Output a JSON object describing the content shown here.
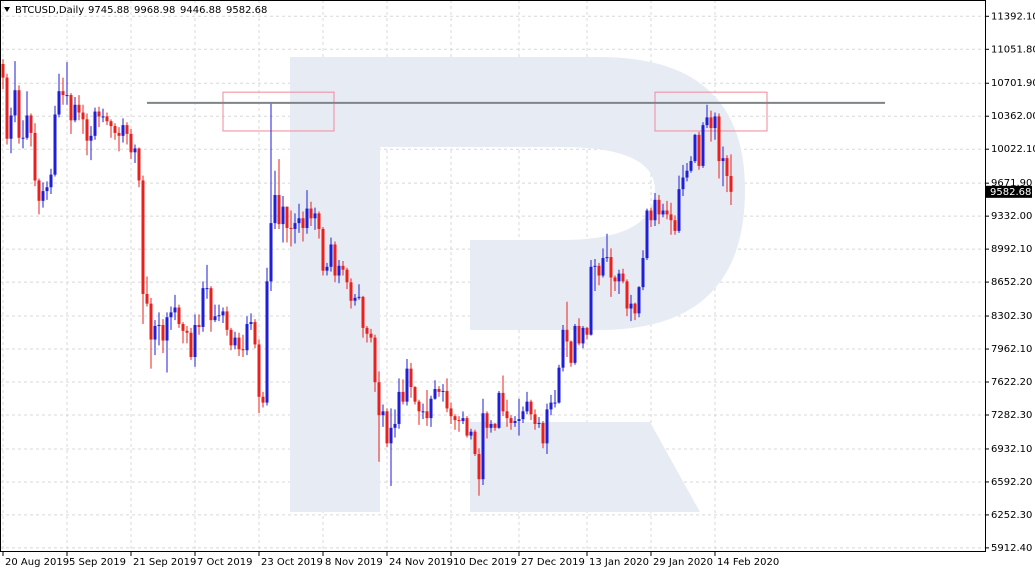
{
  "chart_data": {
    "type": "candlestick",
    "title": "BTCUSD,Daily",
    "categories": [
      "20 Aug 2019",
      null,
      null,
      null,
      null,
      null,
      null,
      null,
      null,
      null,
      null,
      null,
      null,
      null,
      null,
      null,
      "5 Sep 2019",
      null,
      null,
      null,
      null,
      null,
      null,
      null,
      null,
      null,
      null,
      null,
      null,
      null,
      null,
      null,
      "21 Sep 2019",
      null,
      null,
      null,
      null,
      null,
      null,
      null,
      null,
      null,
      null,
      null,
      null,
      null,
      null,
      null,
      "7 Oct 2019",
      null,
      null,
      null,
      null,
      null,
      null,
      null,
      null,
      null,
      null,
      null,
      null,
      null,
      null,
      null,
      "23 Oct 2019",
      null,
      null,
      null,
      null,
      null,
      null,
      null,
      null,
      null,
      null,
      null,
      null,
      null,
      null,
      null,
      "8 Nov 2019",
      null,
      null,
      null,
      null,
      null,
      null,
      null,
      null,
      null,
      null,
      null,
      null,
      null,
      null,
      null,
      "24 Nov 2019",
      null,
      null,
      null,
      null,
      null,
      null,
      null,
      null,
      null,
      null,
      null,
      null,
      null,
      null,
      null,
      "10 Dec 2019",
      null,
      null,
      null,
      null,
      null,
      null,
      null,
      null,
      null,
      null,
      null,
      null,
      null,
      null,
      null,
      null,
      "27 Dec 2019",
      null,
      null,
      null,
      null,
      null,
      null,
      null,
      null,
      null,
      null,
      null,
      null,
      null,
      null,
      null,
      null,
      "13 Jan 2020",
      null,
      null,
      null,
      null,
      null,
      null,
      null,
      null,
      null,
      null,
      null,
      null,
      null,
      null,
      null,
      "29 Jan 2020",
      null,
      null,
      null,
      null,
      null,
      null,
      null,
      null,
      null,
      null,
      null,
      null,
      null,
      null,
      null,
      "14 Feb 2020",
      null,
      null,
      null,
      null
    ],
    "open": [
      10900,
      10760,
      10130,
      10370,
      10630,
      10140,
      10140,
      10370,
      10190,
      9700,
      9490,
      9590,
      9630,
      9760,
      10380,
      10620,
      10580,
      10580,
      10320,
      10480,
      10400,
      10330,
      10110,
      10160,
      10410,
      10360,
      10360,
      10310,
      10260,
      10190,
      10160,
      10270,
      10180,
      9990,
      10030,
      9700,
      8530,
      8430,
      8060,
      8200,
      8210,
      8050,
      8290,
      8340,
      8390,
      8220,
      8150,
      8130,
      7880,
      8210,
      8190,
      8590,
      8590,
      8260,
      8300,
      8310,
      8350,
      8160,
      8000,
      8080,
      7960,
      7950,
      8220,
      8240,
      8010,
      7470,
      7410,
      8660,
      9260,
      9550,
      9250,
      9430,
      9210,
      9200,
      9260,
      9310,
      9210,
      9410,
      9310,
      9360,
      9200,
      8770,
      8810,
      9040,
      8720,
      8820,
      8780,
      8650,
      8460,
      8490,
      8500,
      8180,
      8120,
      8080,
      7620,
      7280,
      7320,
      6990,
      7150,
      7190,
      7520,
      7420,
      7760,
      7570,
      7420,
      7320,
      7320,
      7250,
      7450,
      7550,
      7520,
      7530,
      7350,
      7270,
      7230,
      7220,
      7250,
      7070,
      7110,
      6880,
      6620,
      7300,
      7150,
      7190,
      7150,
      7510,
      7320,
      7250,
      7200,
      7220,
      7240,
      7320,
      7420,
      7290,
      7190,
      7200,
      6990,
      7340,
      7410,
      7410,
      7770,
      8160,
      8040,
      7820,
      8200,
      8020,
      8180,
      8110,
      8810,
      8820,
      8720,
      8900,
      8910,
      8700,
      8660,
      8740,
      8660,
      8380,
      8430,
      8330,
      8600,
      8900,
      9390,
      9290,
      9500,
      9350,
      9390,
      9350,
      9290,
      9180,
      9610,
      9730,
      9800,
      9900,
      10170,
      9850,
      10270,
      10350,
      10240,
      10360,
      9900,
      9930,
      9745.88
    ],
    "high": [
      10950,
      10800,
      10450,
      10930,
      10680,
      10320,
      10620,
      10390,
      10290,
      9720,
      9680,
      9690,
      9820,
      10470,
      10800,
      10760,
      10920,
      10600,
      10560,
      10580,
      10480,
      10390,
      10260,
      10450,
      10460,
      10440,
      10400,
      10330,
      10290,
      10250,
      10340,
      10300,
      10230,
      10070,
      10040,
      9750,
      8710,
      8490,
      8260,
      8340,
      8270,
      8340,
      8400,
      8520,
      8420,
      8240,
      8200,
      8180,
      8320,
      8320,
      8660,
      8830,
      8610,
      8420,
      8420,
      8390,
      8400,
      8180,
      8140,
      8130,
      8110,
      8300,
      8330,
      8270,
      8060,
      7520,
      8800,
      10500,
      9800,
      9920,
      9540,
      9430,
      9390,
      9360,
      9460,
      9380,
      9600,
      9480,
      9420,
      9380,
      9220,
      8850,
      9110,
      9070,
      8880,
      8870,
      8800,
      8690,
      8530,
      8630,
      8510,
      8200,
      8170,
      8110,
      7730,
      7390,
      7350,
      7350,
      7340,
      7660,
      7650,
      7860,
      7820,
      7580,
      7440,
      7400,
      7540,
      7480,
      7640,
      7580,
      7600,
      7660,
      7410,
      7290,
      7270,
      7320,
      7270,
      7140,
      7130,
      6940,
      7450,
      7320,
      7230,
      7200,
      7530,
      7690,
      7440,
      7280,
      7270,
      7450,
      7370,
      7520,
      7440,
      7340,
      7260,
      7220,
      7400,
      7490,
      7540,
      7800,
      8210,
      8450,
      8050,
      8220,
      8280,
      8200,
      8190,
      8880,
      8890,
      8850,
      9000,
      9150,
      9000,
      8720,
      8780,
      8790,
      8680,
      8520,
      8440,
      8610,
      8980,
      9410,
      9420,
      9570,
      9550,
      9460,
      9490,
      9470,
      9340,
      9750,
      9860,
      9880,
      9950,
      10180,
      10200,
      10300,
      10480,
      10420,
      10400,
      10390,
      10050,
      9960,
      9968.98
    ],
    "low": [
      10640,
      10070,
      9980,
      10300,
      10080,
      10030,
      10120,
      10050,
      9640,
      9350,
      9420,
      9500,
      9560,
      9740,
      10350,
      10480,
      10480,
      10180,
      10300,
      10320,
      10180,
      9960,
      9910,
      10120,
      10250,
      10300,
      10270,
      10140,
      10120,
      10000,
      10090,
      10070,
      9920,
      9880,
      9630,
      8220,
      8400,
      7760,
      7900,
      8000,
      7920,
      7720,
      8160,
      8260,
      8180,
      8020,
      8020,
      7850,
      7780,
      8110,
      8140,
      8480,
      8140,
      8240,
      8250,
      8230,
      8100,
      7950,
      7960,
      7890,
      7880,
      7900,
      8160,
      7970,
      7300,
      7360,
      7380,
      8560,
      9200,
      9200,
      9060,
      9060,
      9020,
      9050,
      9160,
      9070,
      9150,
      9230,
      9190,
      9100,
      8720,
      8720,
      8760,
      8650,
      8640,
      8720,
      8580,
      8380,
      8410,
      8470,
      8080,
      8030,
      8030,
      7520,
      6800,
      7160,
      6950,
      6550,
      7050,
      7140,
      7390,
      7380,
      7460,
      7390,
      7180,
      7240,
      7170,
      7160,
      7440,
      7470,
      7420,
      7310,
      7190,
      7130,
      7110,
      7190,
      7050,
      7030,
      6860,
      6450,
      6560,
      7040,
      7100,
      7120,
      7140,
      7270,
      7160,
      7130,
      7160,
      7070,
      7200,
      7290,
      7230,
      7130,
      7150,
      6940,
      6880,
      7280,
      7360,
      7400,
      7730,
      7880,
      7780,
      7800,
      8000,
      7970,
      8060,
      8100,
      8560,
      8620,
      8700,
      8860,
      8500,
      8560,
      8530,
      8640,
      8300,
      8250,
      8260,
      8290,
      8570,
      8880,
      9220,
      9230,
      9250,
      9320,
      9300,
      9140,
      9140,
      9160,
      9540,
      9690,
      9780,
      9880,
      9810,
      9830,
      10240,
      10100,
      10120,
      9720,
      9640,
      9580,
      9446.88
    ],
    "close": [
      10760,
      10130,
      10370,
      10630,
      10140,
      10140,
      10370,
      10190,
      9700,
      9490,
      9590,
      9630,
      9760,
      10380,
      10620,
      10580,
      10580,
      10320,
      10480,
      10400,
      10330,
      10110,
      10160,
      10410,
      10360,
      10360,
      10310,
      10260,
      10190,
      10160,
      10270,
      10180,
      9990,
      10030,
      9700,
      8530,
      8430,
      8060,
      8200,
      8210,
      8050,
      8290,
      8340,
      8390,
      8220,
      8150,
      8130,
      7880,
      8210,
      8190,
      8590,
      8590,
      8260,
      8300,
      8310,
      8350,
      8160,
      8000,
      8080,
      7960,
      7950,
      8220,
      8240,
      8010,
      7470,
      7410,
      8660,
      9260,
      9550,
      9250,
      9430,
      9210,
      9200,
      9260,
      9310,
      9210,
      9410,
      9310,
      9360,
      9200,
      8770,
      8810,
      9040,
      8720,
      8820,
      8780,
      8650,
      8460,
      8490,
      8500,
      8180,
      8120,
      8080,
      7620,
      7280,
      7320,
      6990,
      7150,
      7190,
      7520,
      7420,
      7760,
      7570,
      7420,
      7320,
      7320,
      7250,
      7450,
      7550,
      7520,
      7530,
      7350,
      7270,
      7230,
      7220,
      7250,
      7070,
      7110,
      6880,
      6620,
      7300,
      7150,
      7190,
      7150,
      7510,
      7320,
      7250,
      7200,
      7220,
      7240,
      7320,
      7420,
      7290,
      7190,
      7200,
      6990,
      7340,
      7410,
      7410,
      7770,
      8160,
      8040,
      7820,
      8200,
      8020,
      8180,
      8110,
      8810,
      8820,
      8720,
      8900,
      8910,
      8700,
      8660,
      8740,
      8660,
      8380,
      8430,
      8330,
      8600,
      8900,
      9390,
      9290,
      9500,
      9350,
      9390,
      9350,
      9290,
      9180,
      9610,
      9730,
      9800,
      9900,
      10170,
      9850,
      10270,
      10350,
      10240,
      10360,
      9900,
      9930,
      9745.88,
      9582.68
    ],
    "up_color": "#1f1fd6",
    "down_color": "#e8201e",
    "xlim": [
      -0.75,
      245.5
    ],
    "ylim": [
      5870,
      11560
    ],
    "yticks": [
      {
        "value": 11392.1,
        "label": "11392.10"
      },
      {
        "value": 11051.8,
        "label": "11051.80"
      },
      {
        "value": 10701.9,
        "label": "10701.90"
      },
      {
        "value": 10362,
        "label": "10362.00"
      },
      {
        "value": 10022.1,
        "label": "10022.10"
      },
      {
        "value": 9671.9,
        "label": "9671.90"
      },
      {
        "value": 9332,
        "label": "9332.00"
      },
      {
        "value": 8992.1,
        "label": "8992.10"
      },
      {
        "value": 8652.2,
        "label": "8652.20"
      },
      {
        "value": 8302.3,
        "label": "8302.30"
      },
      {
        "value": 7962.1,
        "label": "7962.10"
      },
      {
        "value": 7622.2,
        "label": "7622.20"
      },
      {
        "value": 7282.3,
        "label": "7282.30"
      },
      {
        "value": 6932.1,
        "label": "6932.10"
      },
      {
        "value": 6592.2,
        "label": "6592.20"
      },
      {
        "value": 6252.3,
        "label": "6252.30"
      },
      {
        "value": 5912.4,
        "label": "5912.40"
      }
    ],
    "grid": true,
    "level_line": {
      "value": 10500,
      "x": [
        36,
        220.5
      ],
      "color": "#7d8588"
    },
    "zones": [
      {
        "low": 10210,
        "high": 10610,
        "x": [
          55,
          82.75
        ]
      },
      {
        "low": 10210,
        "high": 10610,
        "x": [
          163,
          191
        ]
      }
    ],
    "zone_color": "#f08a9a"
  }
}
